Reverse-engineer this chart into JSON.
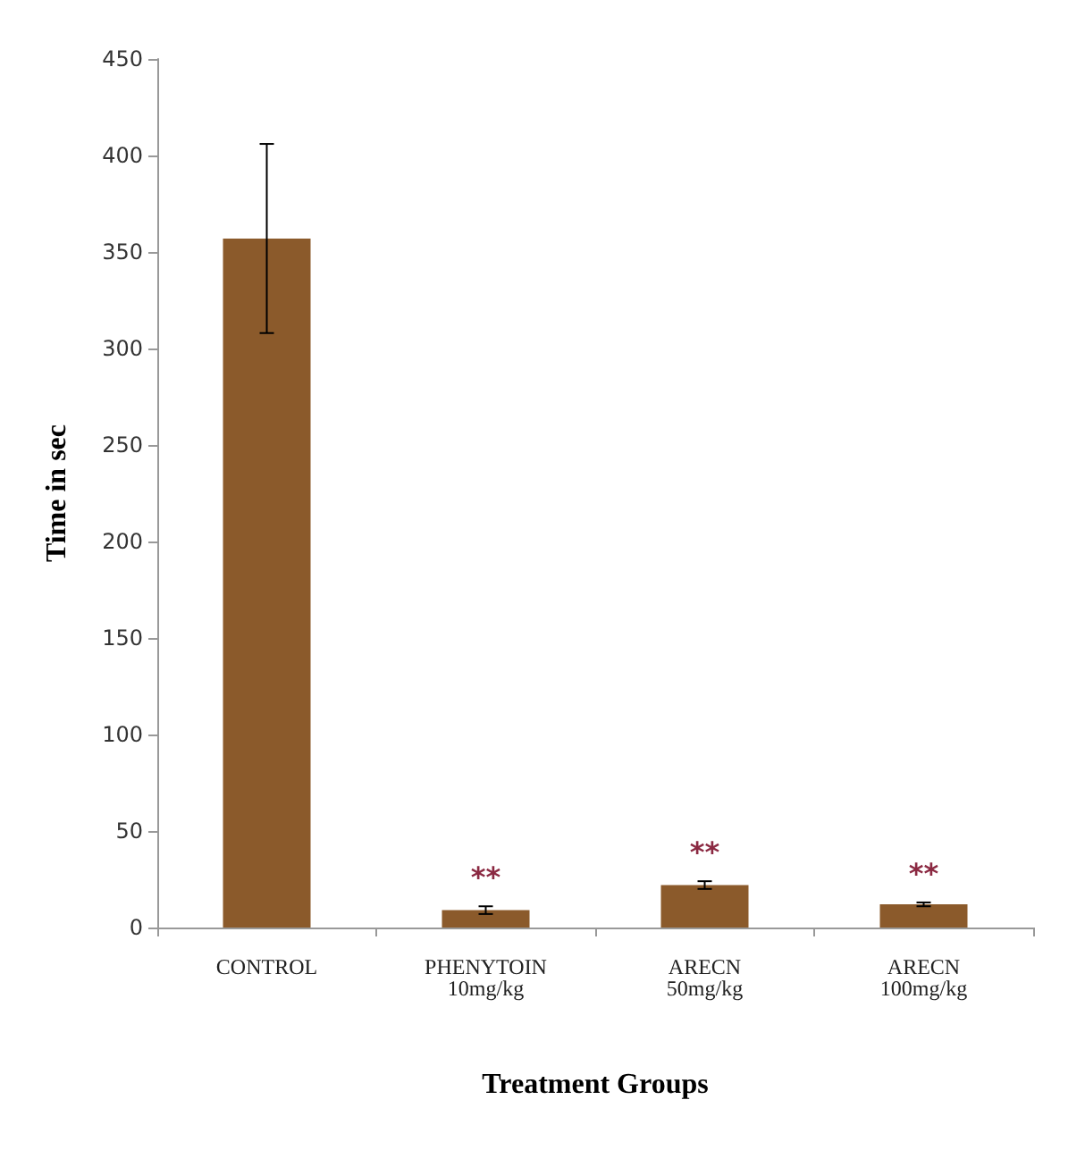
{
  "chart_data": {
    "type": "bar",
    "ylabel": "Time in sec",
    "xlabel": "Treatment Groups",
    "categories": [
      "CONTROL",
      "PHENYTOIN\n10mg/kg",
      "ARECN\n50mg/kg",
      "ARECN\n100mg/kg"
    ],
    "values": [
      357,
      9,
      22,
      12
    ],
    "errors": [
      49,
      2,
      2,
      1
    ],
    "color": "#8b5a2b",
    "ylim": [
      0,
      450
    ],
    "yticks": [
      0,
      50,
      100,
      150,
      200,
      250,
      300,
      350,
      400,
      450
    ],
    "grid": false,
    "annotations": [
      "**",
      "**",
      "**"
    ]
  }
}
